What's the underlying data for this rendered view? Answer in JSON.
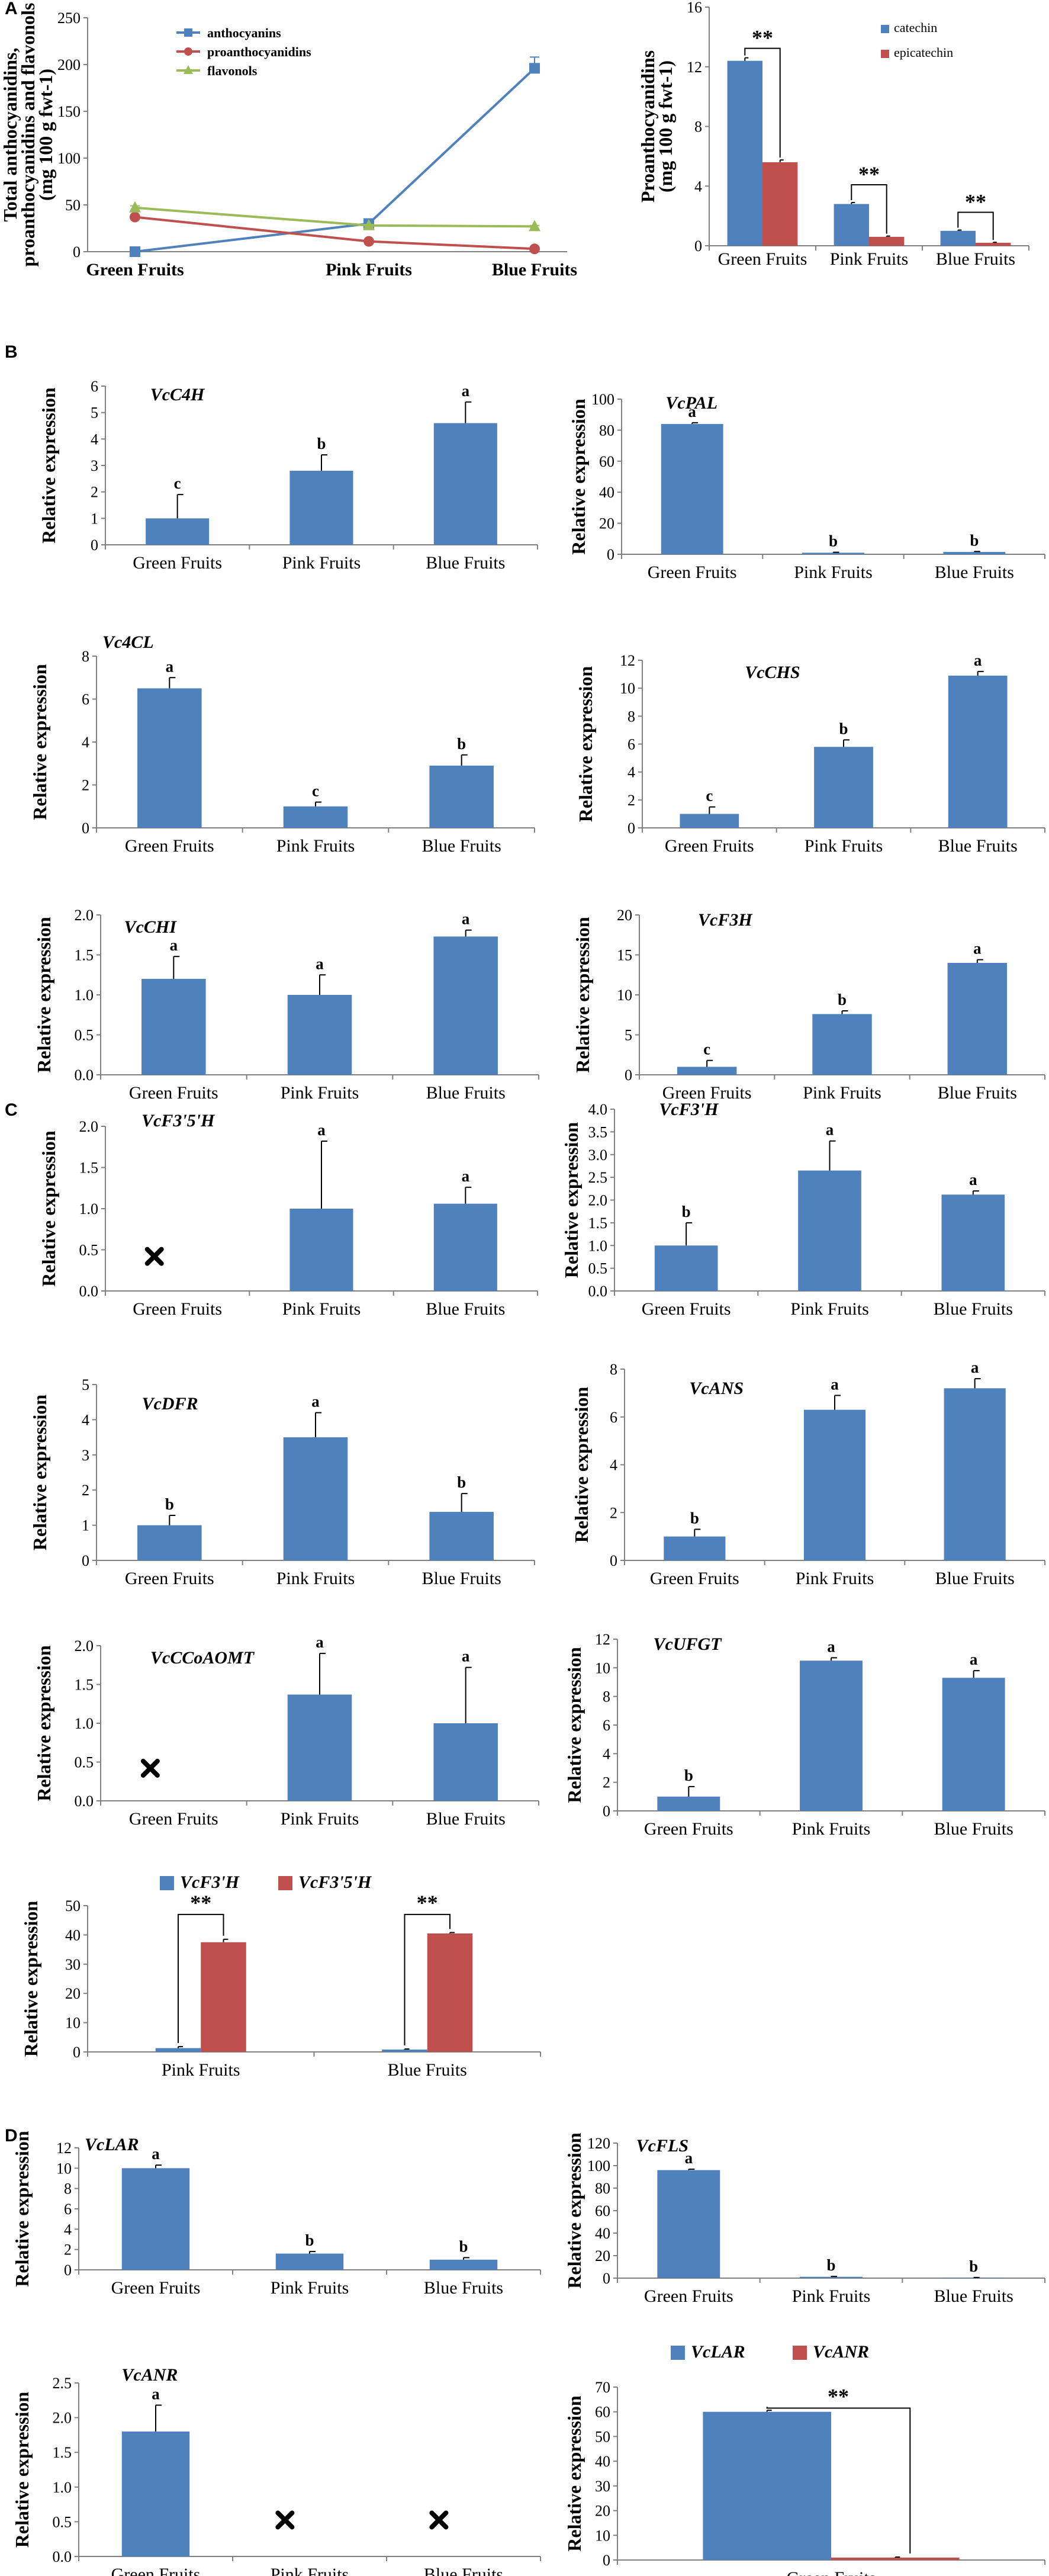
{
  "panels": {
    "A": "A",
    "B": "B",
    "C": "C",
    "D": "D"
  },
  "legend_labels": {
    "vcf3h": "VcF3'H",
    "vcf35h": "VcF3'5'H",
    "vclar": "VcLAR",
    "vcanr": "VcANR"
  },
  "colors": {
    "blue": "#4f81bd",
    "red": "#c0504d",
    "green": "#9bbb59"
  },
  "chart_data": [
    {
      "id": "A1",
      "type": "line",
      "title": "",
      "ylabel": "Total anthocyanidins, proanthocyanidins and flavonols (mg 100 g fwt-1)",
      "ylabel_lines": [
        "Total anthocyanidins,",
        "proanthocyanidins and flavonols",
        "(mg 100 g fwt-1)"
      ],
      "categories": [
        "Green Fruits",
        "Pink Fruits",
        "Blue Fruits"
      ],
      "ylim": [
        0,
        250
      ],
      "ticks": [
        "0",
        "50",
        "100",
        "150",
        "200",
        "250"
      ],
      "series": [
        {
          "name": "anthocyanins",
          "values": [
            0,
            30,
            196
          ],
          "errors": [
            1,
            2,
            12
          ],
          "color": "#4f81bd",
          "marker": "square"
        },
        {
          "name": "proanthocyanidins",
          "values": [
            37,
            11,
            3
          ],
          "errors": [
            2,
            1,
            1
          ],
          "color": "#c0504d",
          "marker": "circle"
        },
        {
          "name": "flavonols",
          "values": [
            47,
            28,
            27
          ],
          "errors": [
            2,
            1,
            1
          ],
          "color": "#9bbb59",
          "marker": "triangle"
        }
      ]
    },
    {
      "id": "A2",
      "type": "bar",
      "title": "",
      "ylabel": "Proanthocyanidins (mg 100 g fwt-1)",
      "ylabel_lines": [
        "Proanthocyanidins",
        "(mg 100 g fwt-1)"
      ],
      "categories": [
        "Green Fruits",
        "Pink Fruits",
        "Blue Fruits"
      ],
      "ylim": [
        0,
        16
      ],
      "ticks": [
        "0",
        "4",
        "8",
        "12",
        "16"
      ],
      "series": [
        {
          "name": "catechin",
          "values": [
            12.4,
            2.8,
            1.0
          ],
          "errors": [
            0.2,
            0.1,
            0.05
          ],
          "color": "#4f81bd"
        },
        {
          "name": "epicatechin",
          "values": [
            5.6,
            0.6,
            0.2
          ],
          "errors": [
            0.15,
            0.05,
            0.03
          ],
          "color": "#c0504d"
        }
      ],
      "significance": [
        "**",
        "**",
        "**"
      ]
    },
    {
      "id": "VcC4H",
      "type": "bar",
      "title": "VcC4H",
      "ylabel": "Relative expression",
      "categories": [
        "Green Fruits",
        "Pink Fruits",
        "Blue Fruits"
      ],
      "ylim": [
        0,
        6
      ],
      "ticks": [
        "0",
        "1",
        "2",
        "3",
        "4",
        "5",
        "6"
      ],
      "values": [
        1.0,
        2.8,
        4.6
      ],
      "errors": [
        0.9,
        0.6,
        0.8
      ],
      "letters": [
        "c",
        "b",
        "a"
      ]
    },
    {
      "id": "VcPAL",
      "type": "bar",
      "title": "VcPAL",
      "ylabel": "Relative expression",
      "categories": [
        "Green Fruits",
        "Pink Fruits",
        "Blue Fruits"
      ],
      "ylim": [
        0,
        100
      ],
      "ticks": [
        "0",
        "20",
        "40",
        "60",
        "80",
        "100"
      ],
      "values": [
        84,
        1,
        1.5
      ],
      "errors": [
        0.8,
        0.3,
        0.3
      ],
      "letters": [
        "a",
        "b",
        "b"
      ]
    },
    {
      "id": "Vc4CL",
      "type": "bar",
      "title": "Vc4CL",
      "ylabel": "Relative expression",
      "categories": [
        "Green Fruits",
        "Pink Fruits",
        "Blue Fruits"
      ],
      "ylim": [
        0,
        8
      ],
      "ticks": [
        "0",
        "2",
        "4",
        "6",
        "8"
      ],
      "values": [
        6.5,
        1.0,
        2.9
      ],
      "errors": [
        0.5,
        0.2,
        0.5
      ],
      "letters": [
        "a",
        "c",
        "b"
      ]
    },
    {
      "id": "VcCHS",
      "type": "bar",
      "title": "VcCHS",
      "ylabel": "Relative expression",
      "categories": [
        "Green Fruits",
        "Pink Fruits",
        "Blue Fruits"
      ],
      "ylim": [
        0,
        12
      ],
      "ticks": [
        "0",
        "2",
        "4",
        "6",
        "8",
        "10",
        "12"
      ],
      "values": [
        1.0,
        5.8,
        10.9
      ],
      "errors": [
        0.5,
        0.5,
        0.3
      ],
      "letters": [
        "c",
        "b",
        "a"
      ]
    },
    {
      "id": "VcCHI",
      "type": "bar",
      "title": "VcCHI",
      "ylabel": "Relative expression",
      "categories": [
        "Green Fruits",
        "Pink Fruits",
        "Blue Fruits"
      ],
      "ylim": [
        0,
        2.0
      ],
      "ticks": [
        "0.0",
        "0.5",
        "1.0",
        "1.5",
        "2.0"
      ],
      "values": [
        1.2,
        1.0,
        1.73
      ],
      "errors": [
        0.28,
        0.25,
        0.08
      ],
      "letters": [
        "a",
        "a",
        "a"
      ]
    },
    {
      "id": "VcF3H",
      "type": "bar",
      "title": "VcF3H",
      "ylabel": "Relative expression",
      "categories": [
        "Green Fruits",
        "Pink Fruits",
        "Blue Fruits"
      ],
      "ylim": [
        0,
        20
      ],
      "ticks": [
        "0",
        "5",
        "10",
        "15",
        "20"
      ],
      "values": [
        1.0,
        7.6,
        14.0
      ],
      "errors": [
        0.8,
        0.4,
        0.4
      ],
      "letters": [
        "c",
        "b",
        "a"
      ]
    },
    {
      "id": "VcF35H",
      "type": "bar",
      "title": "VcF3'5'H",
      "ylabel": "Relative expression",
      "categories": [
        "Green Fruits",
        "Pink Fruits",
        "Blue Fruits"
      ],
      "ylim": [
        0,
        2.0
      ],
      "ticks": [
        "0.0",
        "0.5",
        "1.0",
        "1.5",
        "2.0"
      ],
      "values": [
        null,
        1.0,
        1.06
      ],
      "errors": [
        0,
        0.82,
        0.2
      ],
      "letters": [
        "",
        "a",
        "a"
      ],
      "absent": [
        true,
        false,
        false
      ]
    },
    {
      "id": "VcF3primeH",
      "type": "bar",
      "title": "VcF3'H",
      "ylabel": "Relative expression",
      "categories": [
        "Green Fruits",
        "Pink Fruits",
        "Blue Fruits"
      ],
      "ylim": [
        0,
        4.0
      ],
      "ticks": [
        "0.0",
        "0.5",
        "1.0",
        "1.5",
        "2.0",
        "2.5",
        "3.0",
        "3.5",
        "4.0"
      ],
      "values": [
        1.0,
        2.65,
        2.12
      ],
      "errors": [
        0.5,
        0.65,
        0.08
      ],
      "letters": [
        "b",
        "a",
        "a"
      ]
    },
    {
      "id": "VcDFR",
      "type": "bar",
      "title": "VcDFR",
      "ylabel": "Relative expression",
      "categories": [
        "Green Fruits",
        "Pink Fruits",
        "Blue Fruits"
      ],
      "ylim": [
        0,
        5
      ],
      "ticks": [
        "0",
        "1",
        "2",
        "3",
        "4",
        "5"
      ],
      "values": [
        1.0,
        3.5,
        1.38
      ],
      "errors": [
        0.28,
        0.7,
        0.52
      ],
      "letters": [
        "b",
        "a",
        "b"
      ]
    },
    {
      "id": "VcANS",
      "type": "bar",
      "title": "VcANS",
      "ylabel": "Relative expression",
      "categories": [
        "Green Fruits",
        "Pink Fruits",
        "Blue Fruits"
      ],
      "ylim": [
        0,
        8
      ],
      "ticks": [
        "0",
        "2",
        "4",
        "6",
        "8"
      ],
      "values": [
        1.0,
        6.3,
        7.2
      ],
      "errors": [
        0.3,
        0.6,
        0.4
      ],
      "letters": [
        "b",
        "a",
        "a"
      ]
    },
    {
      "id": "VcCCoAOMT",
      "type": "bar",
      "title": "VcCCoAOMT",
      "ylabel": "Relative expression",
      "categories": [
        "Green Fruits",
        "Pink Fruits",
        "Blue Fruits"
      ],
      "ylim": [
        0,
        2.0
      ],
      "ticks": [
        "0.0",
        "0.5",
        "1.0",
        "1.5",
        "2.0"
      ],
      "values": [
        null,
        1.37,
        1.0
      ],
      "errors": [
        0,
        0.53,
        0.72
      ],
      "letters": [
        "",
        "a",
        "a"
      ],
      "absent": [
        true,
        false,
        false
      ]
    },
    {
      "id": "VcUFGT",
      "type": "bar",
      "title": "VcUFGT",
      "ylabel": "Relative expression",
      "categories": [
        "Green Fruits",
        "Pink Fruits",
        "Blue Fruits"
      ],
      "ylim": [
        0,
        12
      ],
      "ticks": [
        "0",
        "2",
        "4",
        "6",
        "8",
        "10",
        "12"
      ],
      "values": [
        1.0,
        10.5,
        9.3
      ],
      "errors": [
        0.7,
        0.2,
        0.5
      ],
      "letters": [
        "b",
        "a",
        "a"
      ]
    },
    {
      "id": "F3H_vs_F35H",
      "type": "bar",
      "title": "",
      "ylabel": "Relative expression",
      "categories": [
        "Pink Fruits",
        "Blue Fruits"
      ],
      "ylim": [
        0,
        50
      ],
      "ticks": [
        "0",
        "10",
        "20",
        "30",
        "40",
        "50"
      ],
      "series": [
        {
          "name": "VcF3'H",
          "values": [
            1.3,
            0.8
          ],
          "errors": [
            0.5,
            0.2
          ],
          "color": "#4f81bd"
        },
        {
          "name": "VcF3'5'H",
          "values": [
            37.5,
            40.5
          ],
          "errors": [
            1.0,
            0.3
          ],
          "color": "#c0504d"
        }
      ],
      "significance": [
        "**",
        "**"
      ]
    },
    {
      "id": "VcLAR",
      "type": "bar",
      "title": "VcLAR",
      "ylabel": "Relative expression",
      "categories": [
        "Green Fruits",
        "Pink Fruits",
        "Blue Fruits"
      ],
      "ylim": [
        0,
        12
      ],
      "ticks": [
        "0",
        "2",
        "4",
        "6",
        "8",
        "10",
        "12"
      ],
      "values": [
        10.0,
        1.6,
        1.0
      ],
      "errors": [
        0.3,
        0.2,
        0.2
      ],
      "letters": [
        "a",
        "b",
        "b"
      ]
    },
    {
      "id": "VcFLS",
      "type": "bar",
      "title": "VcFLS",
      "ylabel": "Relative expression",
      "categories": [
        "Green Fruits",
        "Pink Fruits",
        "Blue Fruits"
      ],
      "ylim": [
        0,
        120
      ],
      "ticks": [
        "0",
        "20",
        "40",
        "60",
        "80",
        "100",
        "120"
      ],
      "values": [
        96,
        1.2,
        0.4
      ],
      "errors": [
        0.8,
        0.3,
        0.2
      ],
      "letters": [
        "a",
        "b",
        "b"
      ]
    },
    {
      "id": "VcANR",
      "type": "bar",
      "title": "VcANR",
      "ylabel": "Relative expression",
      "categories": [
        "Green Fruits",
        "Pink Fruits",
        "Blue Fruits"
      ],
      "ylim": [
        0,
        2.5
      ],
      "ticks": [
        "0.0",
        "0.5",
        "1.0",
        "1.5",
        "2.0",
        "2.5"
      ],
      "values": [
        1.8,
        null,
        null
      ],
      "errors": [
        0.38,
        0,
        0
      ],
      "letters": [
        "a",
        "",
        ""
      ],
      "absent": [
        false,
        true,
        true
      ]
    },
    {
      "id": "LAR_vs_ANR",
      "type": "bar",
      "title": "",
      "ylabel": "Relative expression",
      "categories": [
        "Green Fruits"
      ],
      "ylim": [
        0,
        70
      ],
      "ticks": [
        "0",
        "10",
        "20",
        "30",
        "40",
        "50",
        "60",
        "70"
      ],
      "series": [
        {
          "name": "VcLAR",
          "values": [
            60
          ],
          "errors": [
            0.6
          ],
          "color": "#4f81bd"
        },
        {
          "name": "VcANR",
          "values": [
            1
          ],
          "errors": [
            0.2
          ],
          "color": "#c0504d"
        }
      ],
      "significance": [
        "**"
      ]
    }
  ]
}
